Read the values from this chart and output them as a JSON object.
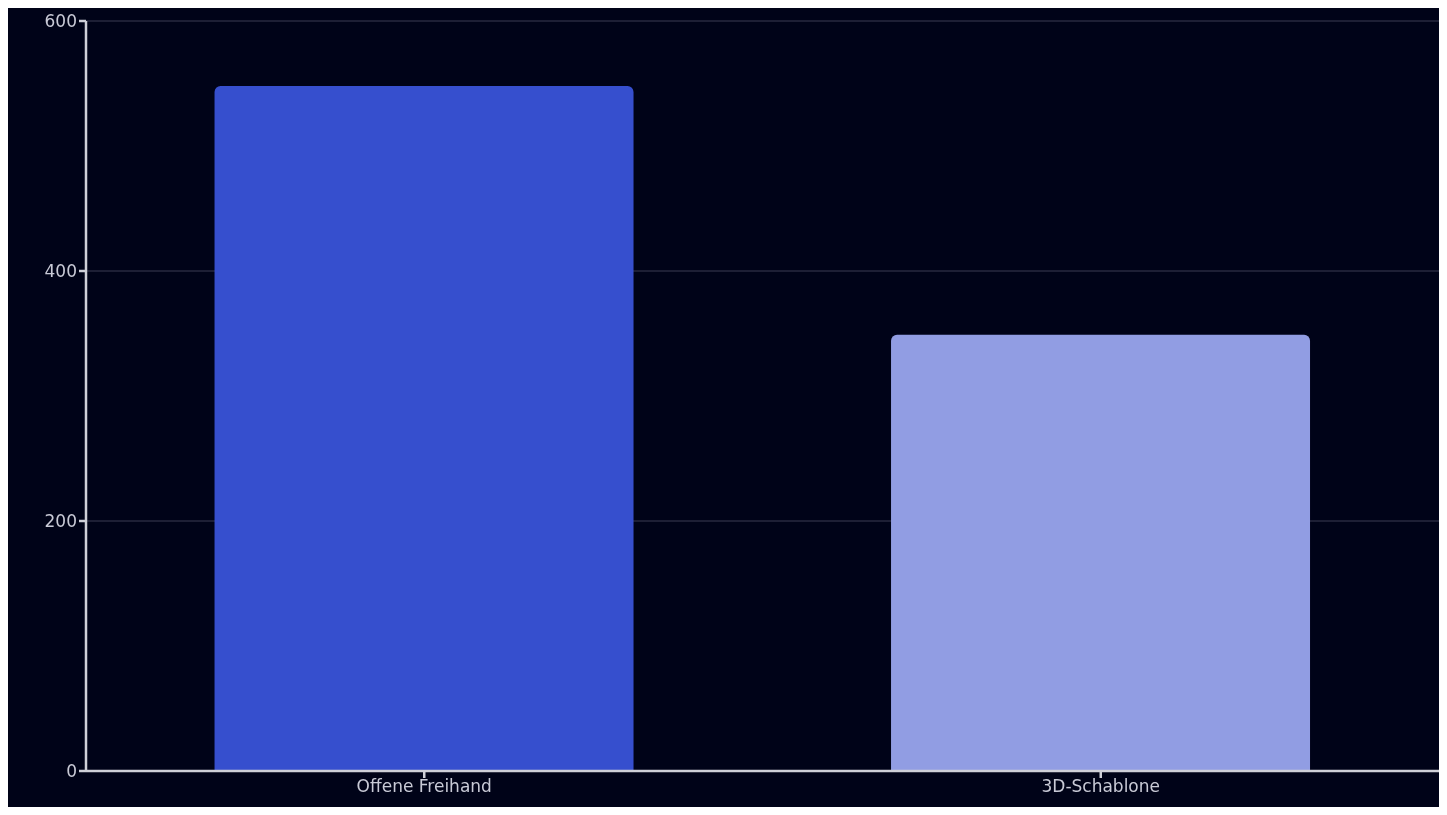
{
  "chart_data": {
    "type": "bar",
    "categories": [
      "Offene Freihand",
      "3D-Schablone"
    ],
    "values": [
      548,
      349
    ],
    "colors": [
      "#364fce",
      "#919de3"
    ],
    "ylim": [
      0,
      600
    ],
    "yticks": [
      0,
      200,
      400,
      600
    ],
    "grid": "y"
  }
}
